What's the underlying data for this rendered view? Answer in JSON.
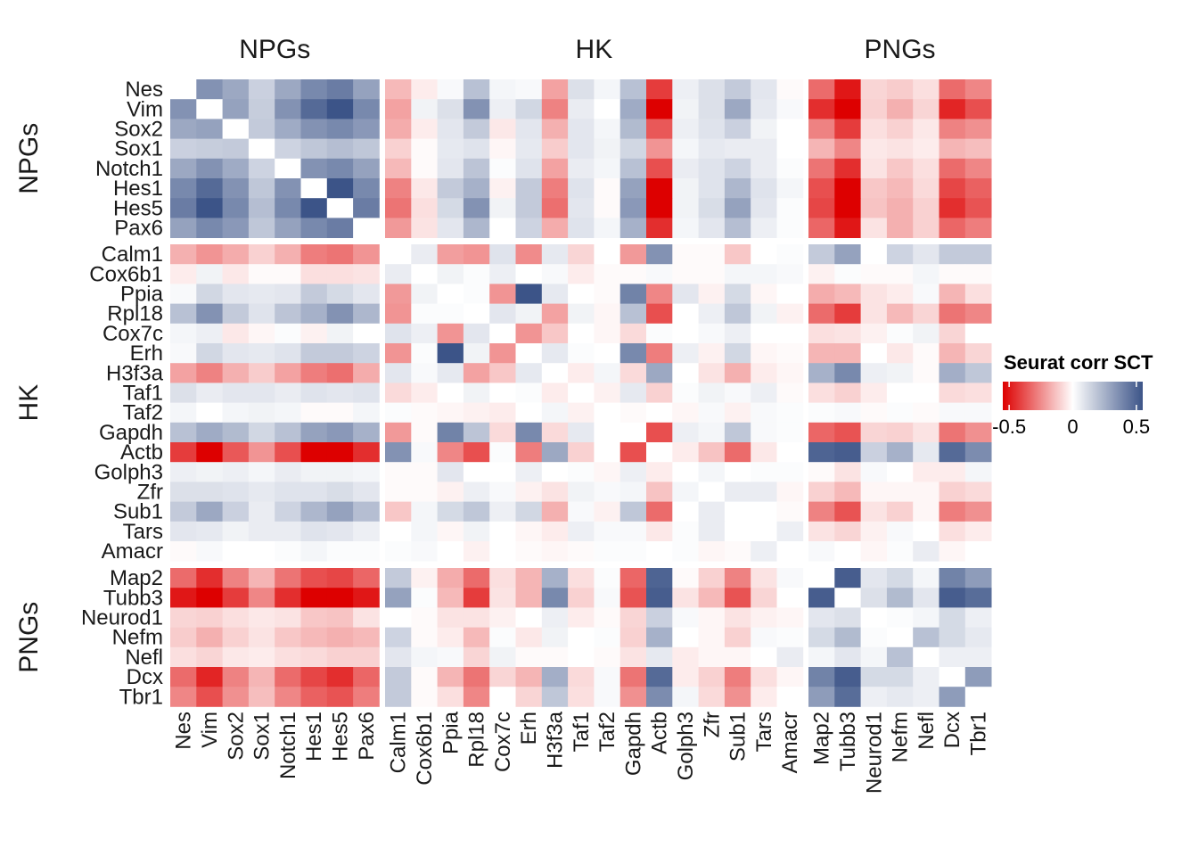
{
  "chart_data": {
    "type": "heatmap",
    "title": "",
    "xlabel": "",
    "ylabel": "",
    "groups": [
      {
        "name": "NPGs",
        "genes": [
          "Nes",
          "Vim",
          "Sox2",
          "Sox1",
          "Notch1",
          "Hes1",
          "Hes5",
          "Pax6"
        ]
      },
      {
        "name": "HK",
        "genes": [
          "Calm1",
          "Cox6b1",
          "Ppia",
          "Rpl18",
          "Cox7c",
          "Erh",
          "H3f3a",
          "Taf1",
          "Taf2",
          "Gapdh",
          "Actb",
          "Golph3",
          "Zfr",
          "Sub1",
          "Tars",
          "Amacr"
        ]
      },
      {
        "name": "PNGs",
        "genes": [
          "Map2",
          "Tubb3",
          "Neurod1",
          "Nefm",
          "Nefl",
          "Dcx",
          "Tbr1"
        ]
      }
    ],
    "rows": [
      "Nes",
      "Vim",
      "Sox2",
      "Sox1",
      "Notch1",
      "Hes1",
      "Hes5",
      "Pax6",
      "Calm1",
      "Cox6b1",
      "Ppia",
      "Rpl18",
      "Cox7c",
      "Erh",
      "H3f3a",
      "Taf1",
      "Taf2",
      "Gapdh",
      "Actb",
      "Golph3",
      "Zfr",
      "Sub1",
      "Tars",
      "Amacr",
      "Map2",
      "Tubb3",
      "Neurod1",
      "Nefm",
      "Nefl",
      "Dcx",
      "Tbr1"
    ],
    "columns": [
      "Nes",
      "Vim",
      "Sox2",
      "Sox1",
      "Notch1",
      "Hes1",
      "Hes5",
      "Pax6",
      "Calm1",
      "Cox6b1",
      "Ppia",
      "Rpl18",
      "Cox7c",
      "Erh",
      "H3f3a",
      "Taf1",
      "Taf2",
      "Gapdh",
      "Actb",
      "Golph3",
      "Zfr",
      "Sub1",
      "Tars",
      "Amacr",
      "Map2",
      "Tubb3",
      "Neurod1",
      "Nefm",
      "Nefl",
      "Dcx",
      "Tbr1"
    ],
    "values": [
      [
        null,
        0.35,
        0.28,
        0.15,
        0.28,
        0.38,
        0.42,
        0.3,
        -0.15,
        -0.04,
        0.02,
        0.2,
        0.03,
        0.02,
        -0.2,
        0.1,
        0.03,
        0.2,
        -0.42,
        0.05,
        0.1,
        0.17,
        0.08,
        -0.01,
        -0.32,
        -0.5,
        -0.09,
        -0.11,
        -0.07,
        -0.32,
        -0.26
      ],
      [
        0.35,
        null,
        0.3,
        0.16,
        0.35,
        0.48,
        0.55,
        0.38,
        -0.2,
        0.04,
        0.1,
        0.35,
        0.05,
        0.13,
        -0.27,
        0.06,
        0.0,
        0.27,
        -0.55,
        0.04,
        0.1,
        0.28,
        0.07,
        0.02,
        -0.45,
        -0.55,
        -0.1,
        -0.17,
        -0.09,
        -0.47,
        -0.38
      ],
      [
        0.28,
        0.3,
        null,
        0.17,
        0.27,
        0.35,
        0.38,
        0.33,
        -0.18,
        -0.04,
        0.08,
        0.17,
        -0.05,
        0.08,
        -0.17,
        0.08,
        0.03,
        0.22,
        -0.36,
        0.05,
        0.09,
        0.15,
        0.04,
        0.0,
        -0.27,
        -0.42,
        -0.07,
        -0.1,
        -0.05,
        -0.27,
        -0.24
      ],
      [
        0.15,
        0.16,
        0.17,
        null,
        0.14,
        0.18,
        0.21,
        0.18,
        -0.1,
        -0.01,
        0.07,
        0.09,
        -0.02,
        0.07,
        -0.11,
        0.08,
        0.04,
        0.13,
        -0.23,
        0.03,
        0.07,
        0.06,
        0.06,
        0.0,
        -0.16,
        -0.26,
        -0.05,
        -0.06,
        -0.04,
        -0.16,
        -0.14
      ],
      [
        0.28,
        0.35,
        0.27,
        0.14,
        null,
        0.35,
        0.38,
        0.3,
        -0.15,
        -0.01,
        0.08,
        0.19,
        0.01,
        0.09,
        -0.2,
        0.06,
        0.03,
        0.2,
        -0.38,
        0.06,
        0.09,
        0.14,
        0.06,
        0.01,
        -0.3,
        -0.45,
        -0.06,
        -0.12,
        -0.07,
        -0.32,
        -0.26
      ],
      [
        0.38,
        0.48,
        0.35,
        0.18,
        0.35,
        null,
        0.55,
        0.38,
        -0.27,
        -0.05,
        0.17,
        0.25,
        -0.03,
        0.17,
        -0.28,
        0.09,
        -0.01,
        0.3,
        -0.55,
        0.04,
        0.09,
        0.23,
        0.09,
        0.03,
        -0.38,
        -0.55,
        -0.12,
        -0.15,
        -0.08,
        -0.4,
        -0.34
      ],
      [
        0.42,
        0.55,
        0.38,
        0.21,
        0.38,
        0.55,
        null,
        0.42,
        -0.3,
        -0.07,
        0.12,
        0.35,
        0.04,
        0.17,
        -0.31,
        0.08,
        -0.01,
        0.33,
        -0.55,
        0.04,
        0.11,
        0.3,
        0.08,
        0.01,
        -0.4,
        -0.55,
        -0.13,
        -0.17,
        -0.1,
        -0.45,
        -0.37
      ],
      [
        0.3,
        0.38,
        0.33,
        0.18,
        0.3,
        0.38,
        0.42,
        null,
        -0.22,
        -0.06,
        0.08,
        0.23,
        0.0,
        0.14,
        -0.18,
        0.09,
        0.03,
        0.25,
        -0.45,
        0.03,
        0.08,
        0.21,
        0.05,
        0.01,
        -0.33,
        -0.5,
        -0.06,
        -0.17,
        -0.1,
        -0.33,
        -0.28
      ],
      [
        -0.17,
        -0.23,
        -0.18,
        -0.1,
        -0.17,
        -0.28,
        -0.3,
        -0.23,
        null,
        0.06,
        -0.21,
        -0.23,
        0.09,
        -0.25,
        0.07,
        -0.09,
        0.0,
        -0.22,
        0.35,
        -0.01,
        -0.01,
        -0.12,
        0.0,
        0.01,
        0.17,
        0.3,
        0.0,
        0.14,
        0.08,
        0.17,
        0.17
      ],
      [
        -0.04,
        0.04,
        -0.05,
        -0.01,
        -0.01,
        -0.07,
        -0.07,
        -0.06,
        0.06,
        null,
        0.04,
        0.01,
        0.05,
        0.0,
        0.02,
        -0.04,
        -0.01,
        -0.01,
        0.02,
        -0.01,
        -0.01,
        0.03,
        0.03,
        0.02,
        -0.03,
        0.01,
        -0.01,
        -0.01,
        0.03,
        -0.01,
        -0.01
      ],
      [
        0.02,
        0.13,
        0.08,
        0.07,
        0.08,
        0.17,
        0.12,
        0.08,
        -0.22,
        0.04,
        null,
        0.01,
        -0.23,
        0.55,
        0.07,
        0.0,
        -0.01,
        0.4,
        -0.26,
        0.08,
        -0.03,
        0.12,
        -0.02,
        0.0,
        -0.18,
        -0.15,
        -0.06,
        -0.04,
        0.02,
        -0.16,
        -0.07
      ],
      [
        0.2,
        0.35,
        0.17,
        0.09,
        0.19,
        0.25,
        0.35,
        0.23,
        -0.23,
        0.01,
        0.01,
        null,
        0.08,
        0.04,
        -0.2,
        0.04,
        -0.02,
        0.2,
        -0.38,
        0.0,
        0.05,
        0.18,
        0.04,
        -0.03,
        -0.32,
        -0.42,
        -0.06,
        -0.15,
        -0.09,
        -0.3,
        -0.26
      ],
      [
        0.03,
        0.05,
        -0.05,
        -0.02,
        0.01,
        -0.03,
        0.04,
        0.0,
        0.09,
        0.05,
        -0.23,
        0.08,
        null,
        -0.23,
        -0.12,
        0.0,
        -0.02,
        -0.08,
        0.01,
        0.0,
        0.02,
        0.05,
        0.0,
        0.0,
        -0.07,
        -0.06,
        -0.03,
        0.01,
        0.04,
        -0.09,
        0.0
      ],
      [
        0.02,
        0.13,
        0.08,
        0.07,
        0.09,
        0.17,
        0.17,
        0.14,
        -0.23,
        0.01,
        0.55,
        0.04,
        -0.23,
        null,
        0.07,
        0.01,
        0.0,
        0.38,
        -0.28,
        0.05,
        -0.03,
        0.13,
        -0.02,
        -0.01,
        -0.16,
        -0.16,
        0.0,
        -0.05,
        -0.01,
        -0.16,
        -0.09
      ],
      [
        -0.2,
        -0.27,
        -0.17,
        -0.11,
        -0.2,
        -0.28,
        -0.31,
        -0.18,
        0.08,
        0.02,
        0.07,
        -0.2,
        -0.12,
        0.07,
        null,
        -0.04,
        0.03,
        -0.08,
        0.28,
        0.0,
        -0.06,
        -0.17,
        -0.04,
        -0.02,
        0.25,
        0.38,
        0.05,
        0.04,
        -0.01,
        0.26,
        0.18
      ],
      [
        0.1,
        0.06,
        0.08,
        0.08,
        0.06,
        0.09,
        0.08,
        0.09,
        -0.08,
        -0.04,
        0.0,
        0.04,
        0.0,
        0.01,
        -0.04,
        null,
        -0.03,
        0.07,
        -0.1,
        0.01,
        0.04,
        0.02,
        0.05,
        -0.01,
        -0.07,
        -0.1,
        -0.04,
        0.0,
        0.0,
        -0.08,
        -0.07
      ],
      [
        0.03,
        0.0,
        0.03,
        0.04,
        0.03,
        -0.01,
        -0.01,
        0.03,
        0.01,
        -0.01,
        -0.02,
        -0.03,
        -0.04,
        0.0,
        0.03,
        -0.03,
        null,
        -0.01,
        0.0,
        -0.02,
        0.02,
        -0.03,
        0.02,
        0.01,
        0.01,
        0.02,
        -0.01,
        0.01,
        -0.01,
        0.02,
        0.02
      ],
      [
        0.2,
        0.27,
        0.22,
        0.13,
        0.2,
        0.3,
        0.33,
        0.25,
        -0.22,
        -0.01,
        0.4,
        0.19,
        -0.08,
        0.38,
        -0.08,
        0.07,
        0.0,
        null,
        -0.38,
        0.05,
        0.03,
        0.18,
        0.02,
        0.01,
        -0.33,
        -0.37,
        -0.09,
        -0.1,
        -0.06,
        -0.3,
        -0.24
      ],
      [
        -0.42,
        -0.55,
        -0.36,
        -0.23,
        -0.38,
        -0.55,
        -0.55,
        -0.45,
        0.35,
        0.02,
        -0.26,
        -0.38,
        0.01,
        -0.28,
        0.28,
        -0.1,
        0.0,
        -0.38,
        null,
        -0.04,
        -0.13,
        -0.32,
        -0.05,
        0.0,
        0.5,
        0.52,
        0.15,
        0.25,
        0.07,
        0.48,
        0.37
      ],
      [
        0.05,
        0.04,
        0.05,
        0.03,
        0.06,
        0.04,
        0.04,
        0.03,
        -0.01,
        -0.01,
        0.08,
        0.0,
        0.0,
        0.05,
        0.0,
        0.01,
        -0.02,
        0.05,
        -0.04,
        null,
        0.03,
        0.0,
        0.01,
        0.01,
        -0.01,
        -0.06,
        0.02,
        0.0,
        -0.04,
        -0.04,
        0.03
      ],
      [
        0.1,
        0.1,
        0.09,
        0.07,
        0.09,
        0.09,
        0.11,
        0.08,
        -0.01,
        -0.01,
        -0.03,
        0.05,
        0.02,
        -0.03,
        -0.06,
        0.04,
        0.02,
        0.03,
        -0.13,
        0.03,
        null,
        0.06,
        0.06,
        -0.02,
        -0.1,
        -0.15,
        -0.02,
        -0.02,
        -0.02,
        -0.1,
        -0.08
      ],
      [
        0.17,
        0.28,
        0.15,
        0.06,
        0.14,
        0.23,
        0.3,
        0.21,
        -0.12,
        0.03,
        0.12,
        0.18,
        0.05,
        0.13,
        -0.17,
        0.02,
        -0.03,
        0.18,
        -0.32,
        0.0,
        0.06,
        null,
        0.0,
        -0.01,
        -0.27,
        -0.37,
        -0.06,
        -0.1,
        -0.02,
        -0.28,
        -0.24
      ],
      [
        0.08,
        0.07,
        0.04,
        0.06,
        0.06,
        0.09,
        0.08,
        0.05,
        0.0,
        0.03,
        -0.02,
        0.04,
        0.0,
        -0.02,
        -0.04,
        0.05,
        0.02,
        0.02,
        -0.05,
        0.01,
        0.06,
        0.0,
        null,
        0.05,
        -0.06,
        -0.09,
        -0.03,
        0.02,
        0.0,
        -0.07,
        -0.04
      ],
      [
        -0.01,
        0.02,
        0.0,
        0.0,
        0.01,
        0.03,
        0.01,
        0.01,
        0.01,
        0.02,
        0.0,
        -0.03,
        0.0,
        -0.01,
        -0.02,
        -0.01,
        0.01,
        0.01,
        0.0,
        0.01,
        -0.02,
        -0.01,
        0.05,
        null,
        0.02,
        0.0,
        -0.02,
        0.01,
        0.06,
        -0.02,
        0.0
      ],
      [
        -0.32,
        -0.45,
        -0.27,
        -0.16,
        -0.3,
        -0.38,
        -0.4,
        -0.33,
        0.17,
        -0.03,
        -0.18,
        -0.32,
        -0.07,
        -0.16,
        0.25,
        -0.07,
        0.01,
        -0.33,
        0.5,
        -0.01,
        -0.1,
        -0.27,
        -0.06,
        0.02,
        null,
        0.52,
        0.08,
        0.12,
        0.03,
        0.4,
        0.32
      ],
      [
        -0.5,
        -0.55,
        -0.42,
        -0.26,
        -0.45,
        -0.55,
        -0.55,
        -0.5,
        0.3,
        0.01,
        -0.15,
        -0.42,
        -0.06,
        -0.16,
        0.38,
        -0.1,
        0.02,
        -0.37,
        0.52,
        -0.06,
        -0.15,
        -0.37,
        -0.09,
        0.0,
        0.52,
        null,
        0.1,
        0.22,
        0.08,
        0.52,
        0.47
      ],
      [
        -0.09,
        -0.1,
        -0.07,
        -0.05,
        -0.06,
        -0.12,
        -0.13,
        -0.06,
        0.0,
        -0.01,
        -0.06,
        -0.06,
        -0.03,
        0.0,
        0.05,
        -0.04,
        -0.01,
        -0.09,
        0.15,
        0.02,
        -0.02,
        -0.06,
        -0.03,
        -0.02,
        0.08,
        0.1,
        null,
        0.01,
        0.03,
        0.12,
        0.05
      ],
      [
        -0.11,
        -0.17,
        -0.1,
        -0.06,
        -0.12,
        -0.15,
        -0.17,
        -0.15,
        0.14,
        -0.01,
        -0.04,
        -0.15,
        0.01,
        -0.05,
        0.04,
        0.0,
        0.01,
        -0.1,
        0.25,
        0.0,
        -0.02,
        -0.1,
        0.02,
        0.01,
        0.12,
        0.22,
        0.01,
        null,
        0.2,
        0.12,
        0.07
      ],
      [
        -0.07,
        -0.09,
        -0.05,
        -0.04,
        -0.07,
        -0.08,
        -0.1,
        -0.1,
        0.08,
        0.03,
        0.02,
        -0.09,
        0.04,
        -0.01,
        -0.01,
        0.0,
        -0.01,
        -0.06,
        0.07,
        -0.04,
        -0.02,
        -0.02,
        0.0,
        0.06,
        0.03,
        0.08,
        0.03,
        0.2,
        null,
        0.05,
        0.05
      ],
      [
        -0.32,
        -0.47,
        -0.27,
        -0.16,
        -0.32,
        -0.4,
        -0.45,
        -0.33,
        0.17,
        -0.01,
        -0.16,
        -0.3,
        -0.09,
        -0.16,
        0.26,
        -0.08,
        0.02,
        -0.3,
        0.48,
        -0.04,
        -0.1,
        -0.28,
        -0.07,
        -0.02,
        0.4,
        0.52,
        0.12,
        0.12,
        0.05,
        null,
        0.32
      ],
      [
        -0.26,
        -0.38,
        -0.24,
        -0.14,
        -0.26,
        -0.34,
        -0.37,
        -0.28,
        0.17,
        -0.01,
        -0.07,
        -0.26,
        0.0,
        -0.09,
        0.18,
        -0.07,
        0.02,
        -0.24,
        0.37,
        0.03,
        -0.08,
        -0.24,
        -0.04,
        0.0,
        0.32,
        0.47,
        0.05,
        0.07,
        0.05,
        0.32,
        null
      ]
    ],
    "color_scale": {
      "title": "Seurat corr SCT",
      "low_color": "#DD0000",
      "mid_color": "#FFFFFF",
      "high_color": "#3C5488",
      "range": [
        -0.55,
        0.55
      ],
      "ticks": [
        -0.5,
        0,
        0.5
      ],
      "tick_labels": [
        "-0.5",
        "0",
        "0.5"
      ]
    },
    "legend_position": "right"
  }
}
